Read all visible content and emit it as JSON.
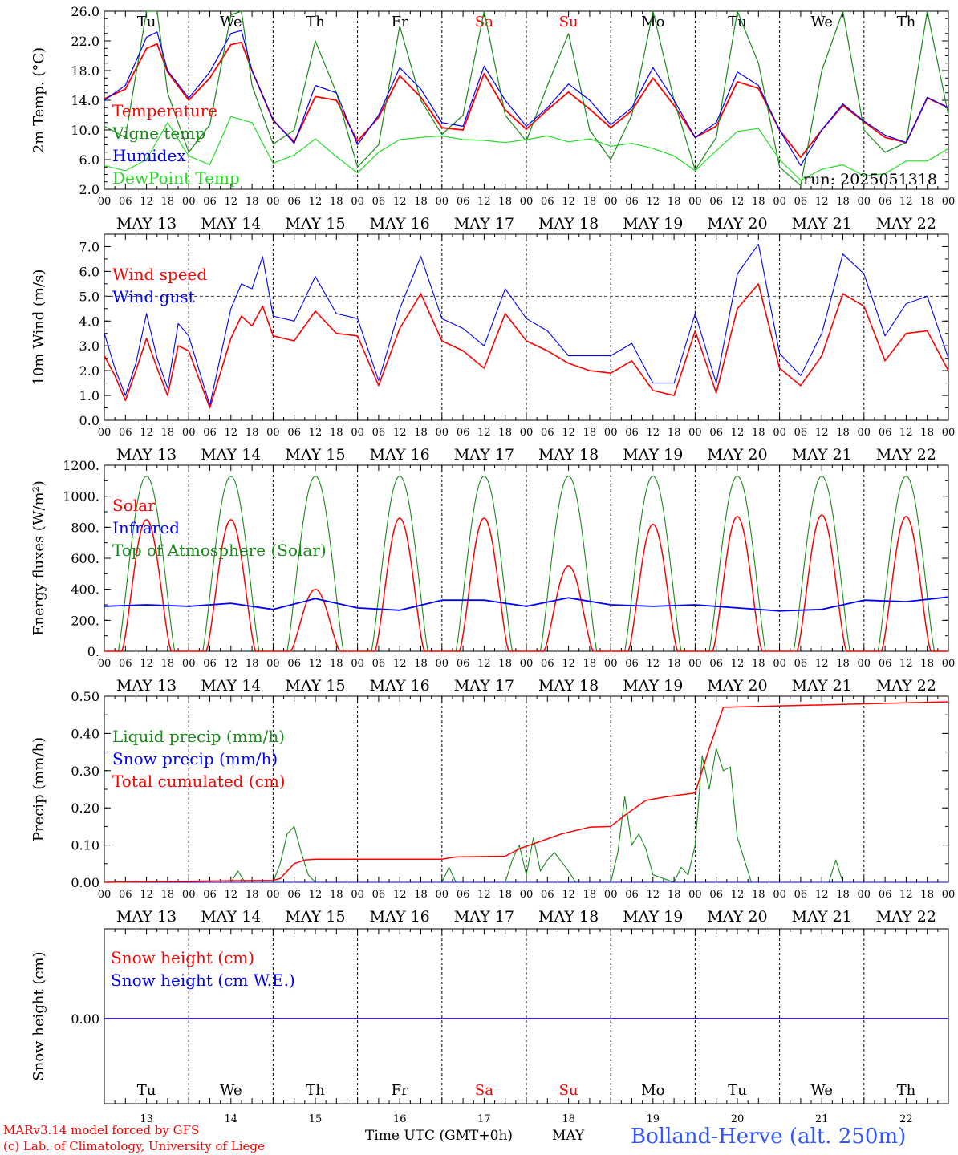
{
  "colors": {
    "red": "#ff0000",
    "green": "#1a8a1a",
    "blue": "#0000ff",
    "lime": "#22dd22",
    "station": "#3355ff"
  },
  "days": [
    "Tu",
    "We",
    "Th",
    "Fr",
    "Sa",
    "Su",
    "Mo",
    "Tu",
    "We",
    "Th"
  ],
  "weekend_days": [
    4,
    5
  ],
  "dates": [
    "MAY 13",
    "MAY 14",
    "MAY 15",
    "MAY 16",
    "MAY 17",
    "MAY 18",
    "MAY 19",
    "MAY 20",
    "MAY 21",
    "MAY 22"
  ],
  "day_numbers": [
    "13",
    "14",
    "15",
    "16",
    "17",
    "18",
    "19",
    "20",
    "21",
    "22"
  ],
  "hour_ticks": [
    "00",
    "06",
    "12",
    "18"
  ],
  "final_hour_tick": "00",
  "run_label": "run: 2025051318",
  "footer": {
    "model": "MARv3.14 model forced by GFS",
    "lab": "(c) Lab. of Climatology, University of Liege",
    "time_label": "Time UTC (GMT+0h)",
    "month": "MAY",
    "station": "Bolland-Herve (alt. 250m)"
  },
  "chart_data": [
    {
      "type": "line",
      "ylabel": "2m Temp. (°C)",
      "ylim": [
        2,
        26
      ],
      "yticks": [
        "2.0",
        "6.0",
        "10.0",
        "14.0",
        "18.0",
        "22.0",
        "26.0"
      ],
      "x_unit": "hours since 2025-05-13 00 UTC",
      "series": [
        {
          "name": "Temperature",
          "color": "red",
          "x": [
            0,
            6,
            12,
            15,
            18,
            24,
            30,
            36,
            39,
            42,
            48,
            54,
            60,
            66,
            72,
            78,
            84,
            90,
            96,
            102,
            108,
            114,
            120,
            126,
            132,
            138,
            144,
            150,
            156,
            162,
            168,
            174,
            180,
            186,
            192,
            198,
            204,
            210,
            216,
            222,
            228,
            234,
            240
          ],
          "y": [
            14.2,
            15.5,
            21,
            21.6,
            17.8,
            14,
            17,
            21.5,
            21.8,
            18,
            11.3,
            8.4,
            14.5,
            14,
            8.5,
            11.7,
            17.3,
            14.4,
            10.3,
            10,
            17.6,
            12.7,
            10.1,
            12.7,
            15.1,
            12.8,
            10.3,
            12.6,
            17,
            13.3,
            9,
            10.5,
            16.5,
            15.6,
            10,
            6.3,
            10,
            13.3,
            11.1,
            9,
            8.3,
            14.3,
            13
          ]
        },
        {
          "name": "Vigne temp",
          "color": "green",
          "x": [
            0,
            6,
            12,
            15,
            18,
            24,
            30,
            36,
            39,
            42,
            48,
            54,
            60,
            66,
            72,
            78,
            84,
            90,
            96,
            102,
            108,
            114,
            120,
            126,
            132,
            138,
            144,
            150,
            156,
            162,
            168,
            174,
            180,
            186,
            192,
            198,
            204,
            210,
            216,
            222,
            228,
            234,
            240
          ],
          "y": [
            10.5,
            9,
            26,
            26,
            15,
            7,
            10.7,
            25.5,
            26,
            16,
            8.1,
            10,
            22,
            15,
            5,
            8,
            24,
            14,
            9.4,
            12,
            26,
            12,
            8.5,
            16,
            23,
            10,
            6,
            12,
            26,
            14,
            4.6,
            9,
            26,
            19,
            5,
            2.5,
            18,
            26,
            10,
            7,
            8.3,
            26,
            12
          ]
        },
        {
          "name": "Humidex",
          "color": "blue",
          "x": [
            0,
            6,
            12,
            15,
            18,
            24,
            30,
            36,
            39,
            42,
            48,
            54,
            60,
            66,
            72,
            78,
            84,
            90,
            96,
            102,
            108,
            114,
            120,
            126,
            132,
            138,
            144,
            150,
            156,
            162,
            168,
            174,
            180,
            186,
            192,
            198,
            204,
            210,
            216,
            222,
            228,
            234,
            240
          ],
          "y": [
            14,
            16,
            22.5,
            23.2,
            18,
            14.3,
            17.8,
            23,
            23.4,
            18,
            11.4,
            8.2,
            16,
            15,
            8,
            12,
            18.4,
            15.5,
            11,
            10.5,
            18.6,
            14,
            10.5,
            13,
            16.2,
            14,
            10.7,
            13,
            18.4,
            14,
            9,
            11,
            17.8,
            16,
            10,
            5.2,
            10,
            13.5,
            11.2,
            9.3,
            8.3,
            14.4,
            13
          ]
        },
        {
          "name": "DewPoint Temp",
          "color": "lime",
          "x": [
            0,
            6,
            12,
            18,
            24,
            30,
            36,
            42,
            48,
            54,
            60,
            66,
            72,
            78,
            84,
            90,
            96,
            102,
            108,
            114,
            120,
            126,
            132,
            138,
            144,
            150,
            156,
            162,
            168,
            174,
            180,
            186,
            192,
            198,
            204,
            210,
            216,
            222,
            228,
            234,
            240
          ],
          "y": [
            5.2,
            4.5,
            6,
            11,
            6.5,
            5.3,
            11.8,
            11,
            5.5,
            6.6,
            8.8,
            6.4,
            4.2,
            7,
            8.7,
            9,
            9.2,
            8.7,
            8.6,
            8.3,
            8.7,
            9.2,
            8.4,
            8.8,
            7.8,
            8.2,
            7.5,
            6.5,
            4.5,
            7.2,
            9.8,
            10.2,
            6,
            3.2,
            4.7,
            5.3,
            3.8,
            4.1,
            5.8,
            5.8,
            7.5
          ]
        }
      ]
    },
    {
      "type": "line",
      "ylabel": "10m Wind (m/s)",
      "ylim": [
        0,
        7.5
      ],
      "yticks": [
        "0.0",
        "1.0",
        "2.0",
        "3.0",
        "4.0",
        "5.0",
        "6.0",
        "7.0"
      ],
      "reference_line": 5.0,
      "series": [
        {
          "name": "Wind speed",
          "color": "red",
          "x": [
            0,
            3,
            6,
            9,
            12,
            15,
            18,
            21,
            24,
            30,
            36,
            39,
            42,
            45,
            48,
            54,
            60,
            66,
            72,
            78,
            84,
            90,
            96,
            102,
            108,
            114,
            120,
            126,
            132,
            138,
            144,
            150,
            156,
            162,
            168,
            174,
            180,
            186,
            192,
            198,
            204,
            210,
            216,
            222,
            228,
            234,
            240
          ],
          "y": [
            2.6,
            1.8,
            0.8,
            2,
            3.3,
            2.1,
            1,
            3,
            2.8,
            0.5,
            3.3,
            4.2,
            3.8,
            4.6,
            3.4,
            3.2,
            4.4,
            3.5,
            3.4,
            1.4,
            3.7,
            5.1,
            3.2,
            2.8,
            2.1,
            4.3,
            3.2,
            2.8,
            2.3,
            2,
            1.9,
            2.4,
            1.2,
            1,
            3.6,
            1.1,
            4.5,
            5.5,
            2.1,
            1.4,
            2.6,
            5.1,
            4.6,
            2.4,
            3.5,
            3.6,
            2
          ]
        },
        {
          "name": "Wind gust",
          "color": "blue",
          "x": [
            0,
            3,
            6,
            9,
            12,
            15,
            18,
            21,
            24,
            30,
            36,
            39,
            42,
            45,
            48,
            54,
            60,
            66,
            72,
            78,
            84,
            90,
            96,
            102,
            108,
            114,
            120,
            126,
            132,
            138,
            144,
            150,
            156,
            162,
            168,
            174,
            180,
            186,
            192,
            198,
            204,
            210,
            216,
            222,
            228,
            234,
            240
          ],
          "y": [
            3.5,
            2.1,
            1,
            2.3,
            4.3,
            2.5,
            1.3,
            3.9,
            3.4,
            0.6,
            4.5,
            5.5,
            5.3,
            6.6,
            4.2,
            4,
            5.8,
            4.3,
            4.1,
            1.6,
            4.5,
            6.6,
            4.1,
            3.7,
            3,
            5.3,
            4.1,
            3.6,
            2.6,
            2.6,
            2.6,
            3.1,
            1.5,
            1.5,
            4.3,
            1.5,
            5.9,
            7.1,
            2.7,
            1.8,
            3.5,
            6.7,
            5.9,
            3.4,
            4.7,
            5,
            2.5
          ]
        }
      ]
    },
    {
      "type": "line",
      "ylabel": "Energy fluxes (W/m²)",
      "ylim": [
        0,
        1200
      ],
      "yticks": [
        "0.",
        "200.",
        "400.",
        "600.",
        "800.",
        "1000.",
        "1200."
      ],
      "series": [
        {
          "name": "Solar",
          "color": "red",
          "day_peaks": [
            850,
            850,
            400,
            860,
            860,
            550,
            820,
            870,
            880,
            870
          ]
        },
        {
          "name": "Infrared",
          "color": "blue",
          "x": [
            0,
            12,
            24,
            36,
            48,
            60,
            72,
            84,
            96,
            108,
            120,
            132,
            144,
            156,
            168,
            180,
            192,
            204,
            216,
            228,
            240
          ],
          "y": [
            290,
            300,
            290,
            310,
            270,
            340,
            280,
            265,
            330,
            330,
            290,
            345,
            300,
            290,
            300,
            280,
            260,
            270,
            330,
            320,
            350
          ]
        },
        {
          "name": "Top of Atmosphere (Solar)",
          "color": "green",
          "day_peak": 1130
        }
      ]
    },
    {
      "type": "line",
      "ylabel": "Precip (mm/h)",
      "ylim": [
        0,
        0.5
      ],
      "yticks": [
        "0.00",
        "0.10",
        "0.20",
        "0.30",
        "0.40",
        "0.50"
      ],
      "series": [
        {
          "name": "Liquid precip (mm/h)",
          "color": "green",
          "x": [
            0,
            36,
            38,
            40,
            48,
            50,
            52,
            54,
            56,
            58,
            60,
            62,
            96,
            98,
            100,
            114,
            116,
            118,
            120,
            122,
            124,
            126,
            128,
            132,
            134,
            144,
            146,
            148,
            150,
            152,
            154,
            156,
            162,
            164,
            166,
            168,
            170,
            172,
            174,
            176,
            178,
            180,
            184,
            206,
            208,
            210,
            240
          ],
          "y": [
            0,
            0,
            0.03,
            0,
            0,
            0.05,
            0.13,
            0.15,
            0.08,
            0.02,
            0,
            0,
            0,
            0.04,
            0,
            0,
            0.06,
            0.1,
            0.02,
            0.12,
            0.03,
            0.06,
            0.08,
            0.03,
            0,
            0,
            0.08,
            0.23,
            0.1,
            0.13,
            0.09,
            0.02,
            0,
            0.04,
            0.02,
            0.1,
            0.34,
            0.25,
            0.36,
            0.3,
            0.31,
            0.12,
            0,
            0,
            0.06,
            0,
            0
          ]
        },
        {
          "name": "Snow precip (mm/h)",
          "color": "blue",
          "x": [
            0,
            240
          ],
          "y": [
            0,
            0
          ]
        },
        {
          "name": "Total cumulated (cm)",
          "color": "red",
          "x": [
            0,
            36,
            48,
            50,
            54,
            57,
            60,
            96,
            100,
            114,
            118,
            124,
            130,
            138,
            144,
            148,
            154,
            160,
            168,
            172,
            176,
            240
          ],
          "y": [
            0,
            0.004,
            0.005,
            0.01,
            0.05,
            0.06,
            0.062,
            0.062,
            0.068,
            0.07,
            0.09,
            0.11,
            0.13,
            0.148,
            0.15,
            0.18,
            0.22,
            0.23,
            0.24,
            0.36,
            0.47,
            0.485
          ]
        }
      ]
    },
    {
      "type": "line",
      "ylabel": "Snow height (cm)",
      "yticks": [
        "0.00"
      ],
      "series": [
        {
          "name": "Snow height (cm)",
          "color": "red",
          "x": [
            0,
            240
          ],
          "y": [
            0,
            0
          ]
        },
        {
          "name": "Snow height (cm W.E.)",
          "color": "blue",
          "x": [
            0,
            240
          ],
          "y": [
            0,
            0
          ]
        }
      ]
    }
  ]
}
